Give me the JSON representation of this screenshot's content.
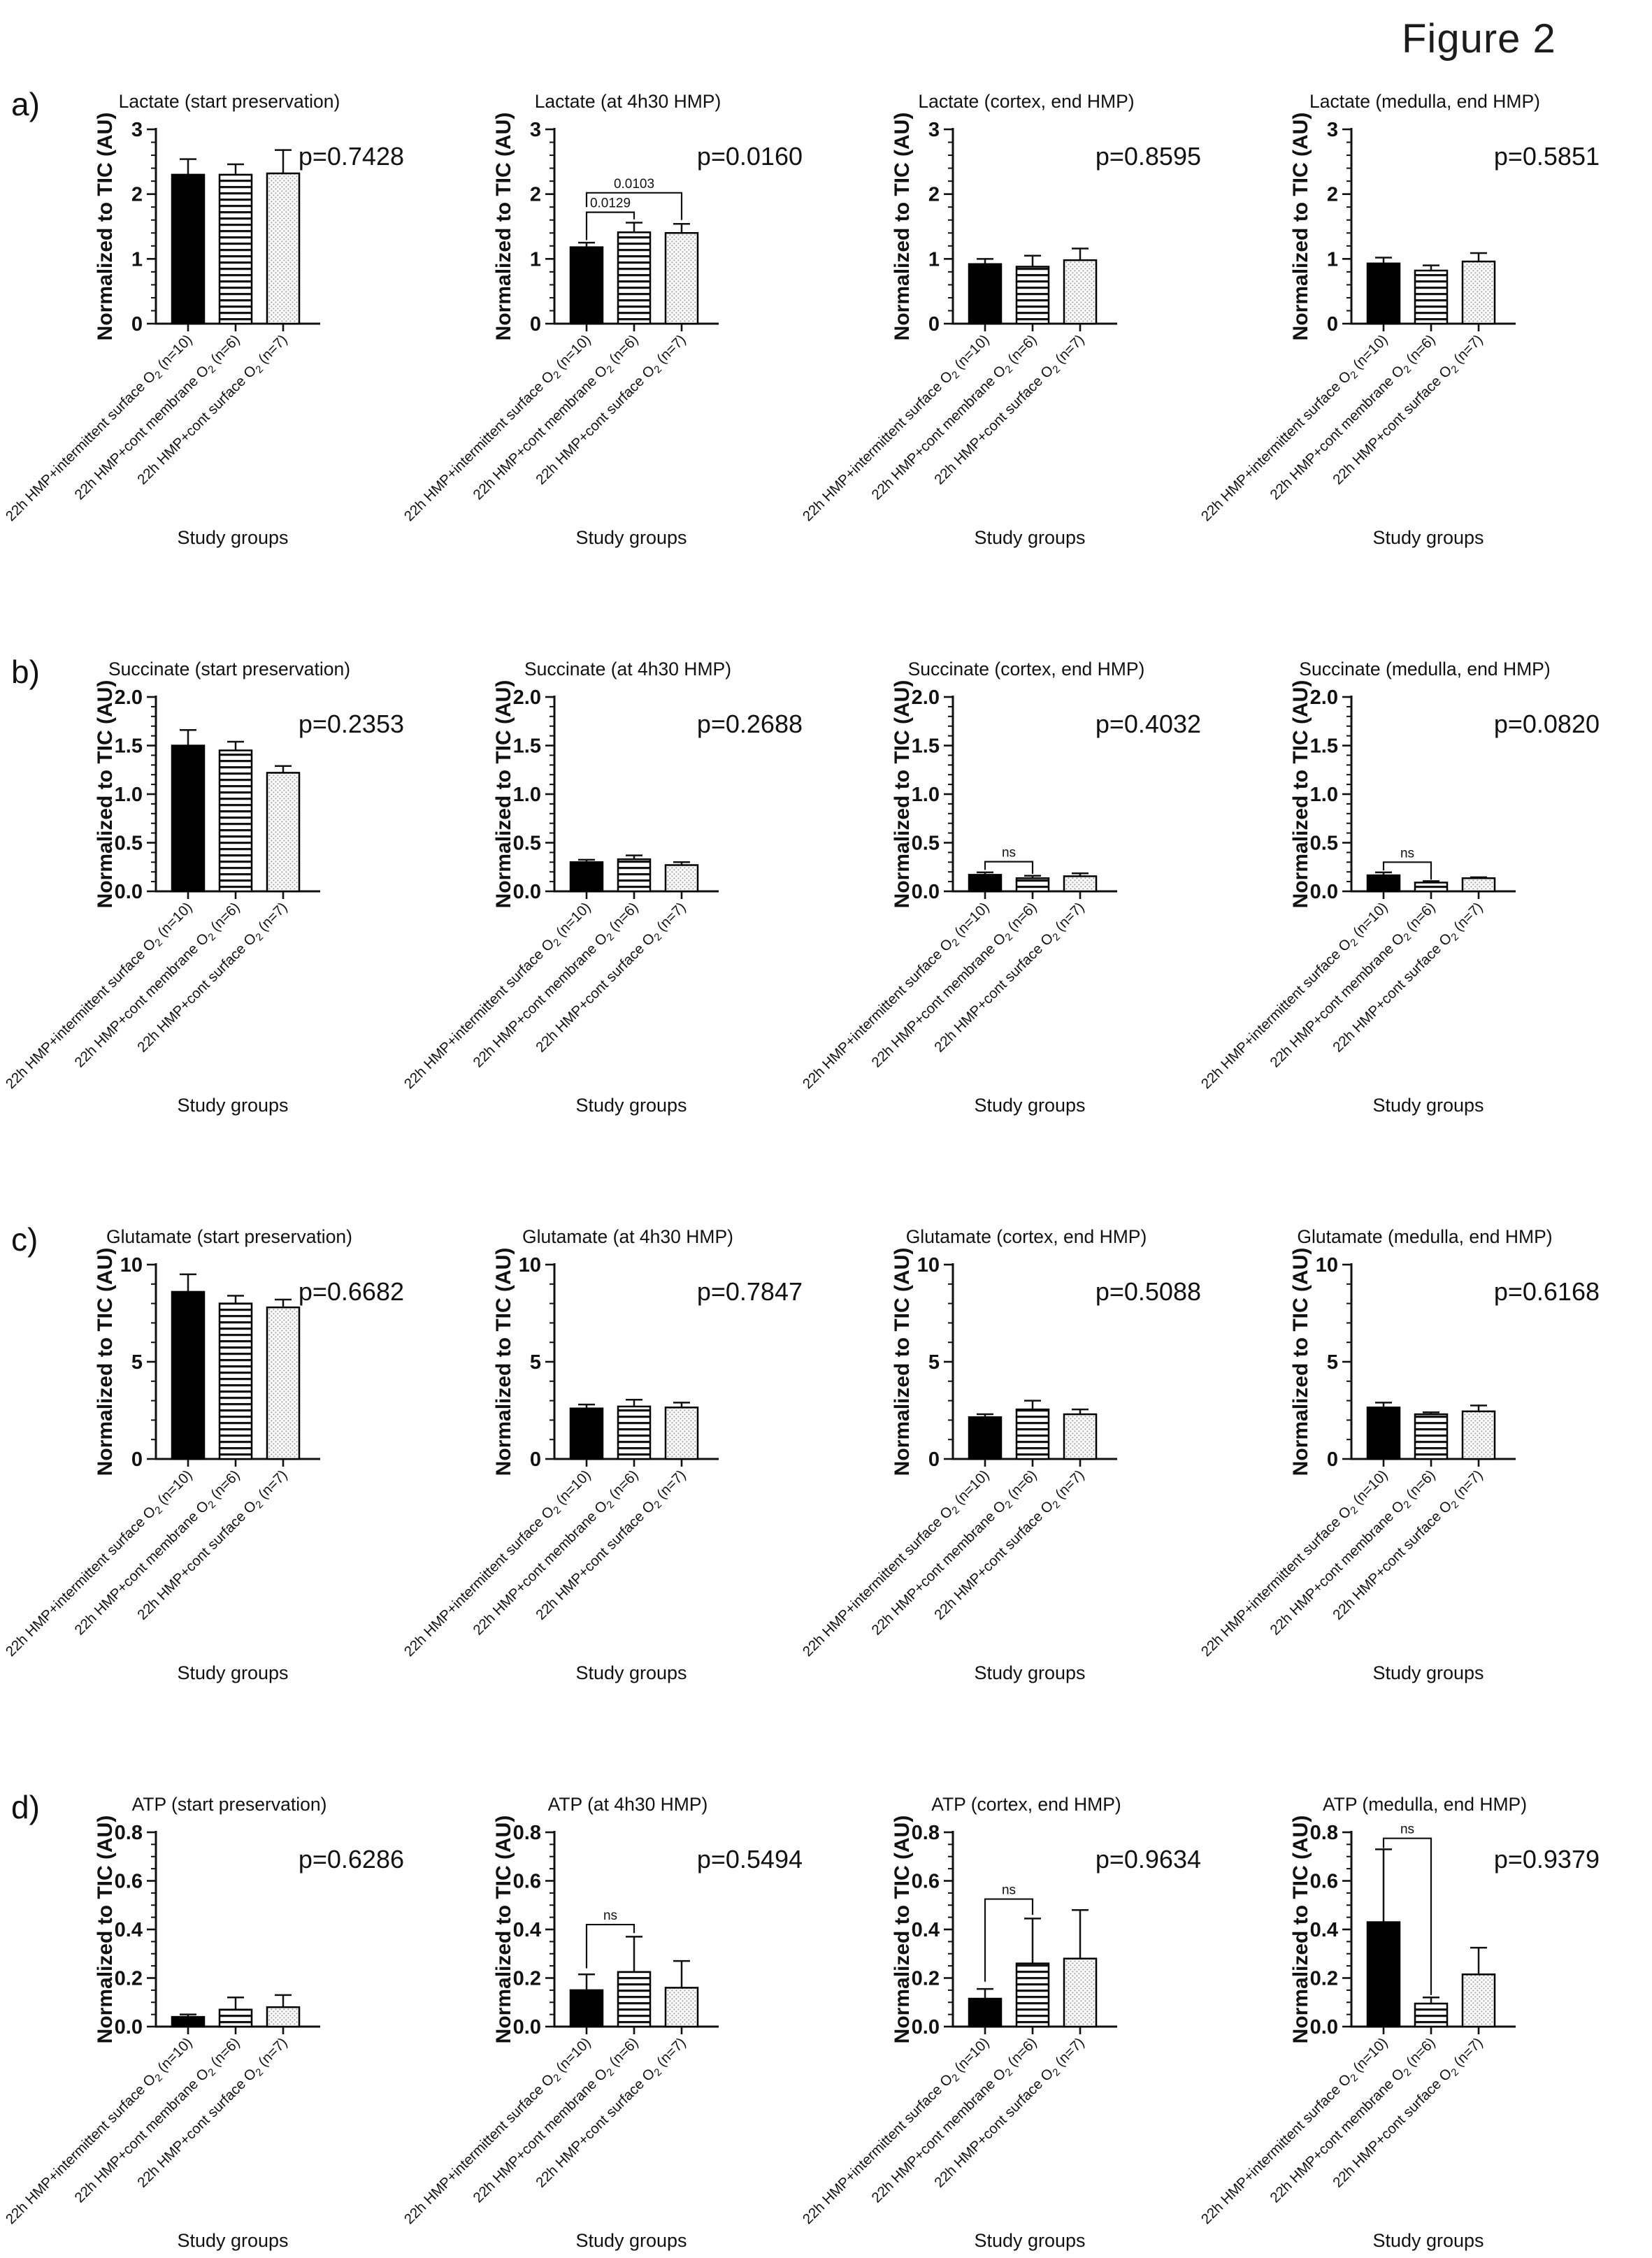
{
  "figure": {
    "title": "Figure 2"
  },
  "panels": [
    {
      "label": "a)"
    },
    {
      "label": "b)"
    },
    {
      "label": "c)"
    },
    {
      "label": "d)"
    }
  ],
  "shared": {
    "y_axis_label": "Normalized to TIC (AU)",
    "x_axis_label": "Study groups",
    "categories": [
      "22h HMP+intermittent surface O2 (n=10)",
      "22h HMP+cont membrane O2 (n=6)",
      "22h HMP+cont surface O2 (n=7)"
    ],
    "bar_styles": [
      "solid-black",
      "horizontal-stripes",
      "dot-grid"
    ],
    "colors": {
      "bar1": "#000000",
      "stripe": "#141414",
      "dot": "#9a9a9a",
      "axis": "#111111"
    }
  },
  "chart_data": [
    {
      "type": "bar",
      "title": "Lactate (start preservation)",
      "p_label": "p=0.7428",
      "ylim": 3,
      "ytick_step": 1,
      "ytick_decimals": 0,
      "minor_step": 0.2,
      "values": [
        2.3,
        2.3,
        2.32
      ],
      "errors_top": [
        2.54,
        2.46,
        2.68
      ],
      "brackets": []
    },
    {
      "type": "bar",
      "title": "Lactate (at 4h30 HMP)",
      "p_label": "p=0.0160",
      "ylim": 3,
      "ytick_step": 1,
      "ytick_decimals": 0,
      "minor_step": 0.2,
      "values": [
        1.18,
        1.41,
        1.4
      ],
      "errors_top": [
        1.25,
        1.56,
        1.54
      ],
      "brackets": [
        {
          "from": 0,
          "to": 1,
          "y": 1.72,
          "label": "0.0129",
          "left_down_to": 1.29,
          "right_down_to": 1.61
        },
        {
          "from": 0,
          "to": 2,
          "y": 2.02,
          "label": "0.0103",
          "left_down_to": 1.8,
          "right_down_to": 1.6
        }
      ]
    },
    {
      "type": "bar",
      "title": "Lactate (cortex, end HMP)",
      "p_label": "p=0.8595",
      "ylim": 3,
      "ytick_step": 1,
      "ytick_decimals": 0,
      "minor_step": 0.2,
      "values": [
        0.92,
        0.88,
        0.98
      ],
      "errors_top": [
        1.0,
        1.05,
        1.16
      ],
      "brackets": []
    },
    {
      "type": "bar",
      "title": "Lactate (medulla, end HMP)",
      "p_label": "p=0.5851",
      "ylim": 3,
      "ytick_step": 1,
      "ytick_decimals": 0,
      "minor_step": 0.2,
      "values": [
        0.93,
        0.82,
        0.96
      ],
      "errors_top": [
        1.02,
        0.9,
        1.09
      ],
      "brackets": []
    },
    {
      "type": "bar",
      "title": "Succinate (start preservation)",
      "p_label": "p=0.2353",
      "ylim": 2,
      "ytick_step": 0.5,
      "ytick_decimals": 1,
      "minor_step": 0.1,
      "values": [
        1.5,
        1.45,
        1.22
      ],
      "errors_top": [
        1.66,
        1.54,
        1.29
      ],
      "brackets": []
    },
    {
      "type": "bar",
      "title": "Succinate (at 4h30 HMP)",
      "p_label": "p=0.2688",
      "ylim": 2,
      "ytick_step": 0.5,
      "ytick_decimals": 1,
      "minor_step": 0.1,
      "values": [
        0.3,
        0.33,
        0.27
      ],
      "errors_top": [
        0.325,
        0.37,
        0.3
      ],
      "brackets": []
    },
    {
      "type": "bar",
      "title": "Succinate (cortex, end HMP)",
      "p_label": "p=0.4032",
      "ylim": 2,
      "ytick_step": 0.5,
      "ytick_decimals": 1,
      "minor_step": 0.1,
      "values": [
        0.17,
        0.135,
        0.155
      ],
      "errors_top": [
        0.195,
        0.16,
        0.185
      ],
      "brackets": [
        {
          "from": 0,
          "to": 1,
          "y": 0.305,
          "label": "ns",
          "left_down_to": 0.22,
          "right_down_to": 0.18
        }
      ]
    },
    {
      "type": "bar",
      "title": "Succinate (medulla, end HMP)",
      "p_label": "p=0.0820",
      "ylim": 2,
      "ytick_step": 0.5,
      "ytick_decimals": 1,
      "minor_step": 0.1,
      "values": [
        0.165,
        0.09,
        0.135
      ],
      "errors_top": [
        0.195,
        0.105,
        0.145
      ],
      "brackets": [
        {
          "from": 0,
          "to": 1,
          "y": 0.3,
          "label": "ns",
          "left_down_to": 0.215,
          "right_down_to": 0.12
        }
      ]
    },
    {
      "type": "bar",
      "title": "Glutamate (start preservation)",
      "p_label": "p=0.6682",
      "ylim": 10,
      "ytick_step": 5,
      "ytick_decimals": 0,
      "minor_step": 1,
      "values": [
        8.6,
        8.0,
        7.8
      ],
      "errors_top": [
        9.5,
        8.4,
        8.2
      ],
      "brackets": []
    },
    {
      "type": "bar",
      "title": "Glutamate (at 4h30 HMP)",
      "p_label": "p=0.7847",
      "ylim": 10,
      "ytick_step": 5,
      "ytick_decimals": 0,
      "minor_step": 1,
      "values": [
        2.6,
        2.7,
        2.65
      ],
      "errors_top": [
        2.8,
        3.05,
        2.9
      ],
      "brackets": []
    },
    {
      "type": "bar",
      "title": "Glutamate (cortex, end HMP)",
      "p_label": "p=0.5088",
      "ylim": 10,
      "ytick_step": 5,
      "ytick_decimals": 0,
      "minor_step": 1,
      "values": [
        2.15,
        2.55,
        2.3
      ],
      "errors_top": [
        2.3,
        3.0,
        2.55
      ],
      "brackets": []
    },
    {
      "type": "bar",
      "title": "Glutamate (medulla, end HMP)",
      "p_label": "p=0.6168",
      "ylim": 10,
      "ytick_step": 5,
      "ytick_decimals": 0,
      "minor_step": 1,
      "values": [
        2.65,
        2.3,
        2.45
      ],
      "errors_top": [
        2.9,
        2.4,
        2.75
      ],
      "brackets": []
    },
    {
      "type": "bar",
      "title": "ATP (start preservation)",
      "p_label": "p=0.6286",
      "ylim": 0.8,
      "ytick_step": 0.2,
      "ytick_decimals": 1,
      "minor_step": 0.05,
      "values": [
        0.04,
        0.07,
        0.08
      ],
      "errors_top": [
        0.05,
        0.12,
        0.13
      ],
      "brackets": []
    },
    {
      "type": "bar",
      "title": "ATP (at 4h30 HMP)",
      "p_label": "p=0.5494",
      "ylim": 0.8,
      "ytick_step": 0.2,
      "ytick_decimals": 1,
      "minor_step": 0.05,
      "values": [
        0.15,
        0.225,
        0.16
      ],
      "errors_top": [
        0.215,
        0.37,
        0.27
      ],
      "brackets": [
        {
          "from": 0,
          "to": 1,
          "y": 0.42,
          "label": "ns",
          "left_down_to": 0.24,
          "right_down_to": 0.385
        }
      ]
    },
    {
      "type": "bar",
      "title": "ATP (cortex, end HMP)",
      "p_label": "p=0.9634",
      "ylim": 0.8,
      "ytick_step": 0.2,
      "ytick_decimals": 1,
      "minor_step": 0.05,
      "values": [
        0.115,
        0.26,
        0.28
      ],
      "errors_top": [
        0.155,
        0.445,
        0.48
      ],
      "brackets": [
        {
          "from": 0,
          "to": 1,
          "y": 0.525,
          "label": "ns",
          "left_down_to": 0.185,
          "right_down_to": 0.46
        }
      ]
    },
    {
      "type": "bar",
      "title": "ATP (medulla, end HMP)",
      "p_label": "p=0.9379",
      "ylim": 0.8,
      "ytick_step": 0.2,
      "ytick_decimals": 1,
      "minor_step": 0.05,
      "values": [
        0.43,
        0.095,
        0.215
      ],
      "errors_top": [
        0.73,
        0.12,
        0.325
      ],
      "brackets": [
        {
          "from": 0,
          "to": 1,
          "y": 0.775,
          "label": "ns",
          "left_down_to": 0.735,
          "right_down_to": 0.13
        }
      ]
    }
  ]
}
